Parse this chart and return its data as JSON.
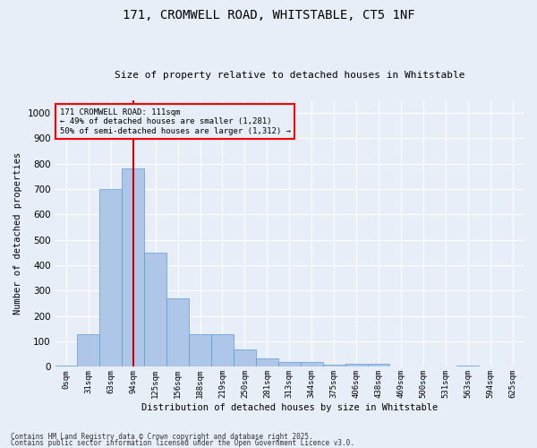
{
  "title_line1": "171, CROMWELL ROAD, WHITSTABLE, CT5 1NF",
  "title_line2": "Size of property relative to detached houses in Whitstable",
  "xlabel": "Distribution of detached houses by size in Whitstable",
  "ylabel": "Number of detached properties",
  "bar_color": "#aec6e8",
  "bar_edge_color": "#5b9bd5",
  "vline_color": "#cc0000",
  "property_size": 111,
  "annotation_title": "171 CROMWELL ROAD: 111sqm",
  "annotation_line2": "← 49% of detached houses are smaller (1,281)",
  "annotation_line3": "50% of semi-detached houses are larger (1,312) →",
  "categories": [
    "0sqm",
    "31sqm",
    "63sqm",
    "94sqm",
    "125sqm",
    "156sqm",
    "188sqm",
    "219sqm",
    "250sqm",
    "281sqm",
    "313sqm",
    "344sqm",
    "375sqm",
    "406sqm",
    "438sqm",
    "469sqm",
    "500sqm",
    "531sqm",
    "563sqm",
    "594sqm",
    "625sqm"
  ],
  "values": [
    5,
    130,
    700,
    780,
    450,
    270,
    130,
    130,
    70,
    35,
    20,
    20,
    10,
    12,
    12,
    0,
    0,
    0,
    5,
    0,
    0
  ],
  "ylim": [
    0,
    1050
  ],
  "yticks": [
    0,
    100,
    200,
    300,
    400,
    500,
    600,
    700,
    800,
    900,
    1000
  ],
  "background_color": "#e8eef8",
  "grid_color": "#ffffff",
  "footer_line1": "Contains HM Land Registry data © Crown copyright and database right 2025.",
  "footer_line2": "Contains public sector information licensed under the Open Government Licence v3.0."
}
